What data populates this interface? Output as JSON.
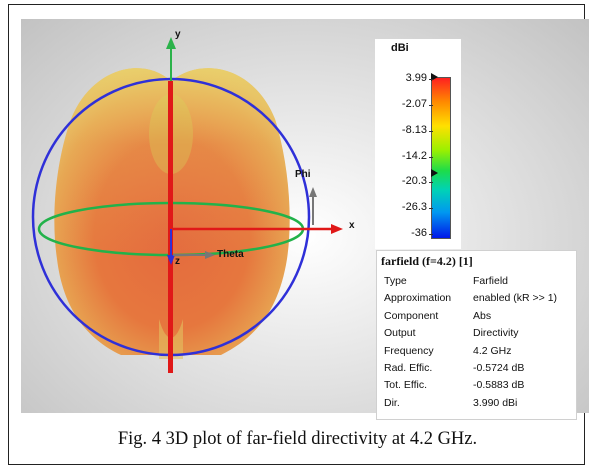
{
  "viewport": {
    "axes": {
      "x": "x",
      "y": "y",
      "z": "z",
      "phi": "Phi",
      "theta": "Theta"
    },
    "colors": {
      "pattern_main": "#e2643a",
      "pattern_light": "#e8c56a",
      "ring_blue": "#2f30d8",
      "ring_green": "#22b24a",
      "axis_red": "#e01818"
    }
  },
  "colorbar": {
    "unit": "dBi",
    "ticks": [
      "3.99",
      "-2.07",
      "-8.13",
      "-14.2",
      "-20.3",
      "-26.3",
      "-36"
    ],
    "marker_values": [
      "3.99",
      "-20.3"
    ]
  },
  "info": {
    "title": "farfield (f=4.2) [1]",
    "rows": [
      {
        "key": "Type",
        "value": "Farfield"
      },
      {
        "key": "Approximation",
        "value": "enabled (kR >> 1)"
      },
      {
        "key": "Component",
        "value": "Abs"
      },
      {
        "key": "Output",
        "value": "Directivity"
      },
      {
        "key": "Frequency",
        "value": "4.2 GHz"
      },
      {
        "key": "Rad. Effic.",
        "value": "-0.5724 dB"
      },
      {
        "key": "Tot. Effic.",
        "value": "-0.5883 dB"
      },
      {
        "key": "Dir.",
        "value": "3.990 dBi"
      }
    ]
  },
  "caption": "Fig. 4 3D plot of far-field directivity at 4.2 GHz."
}
